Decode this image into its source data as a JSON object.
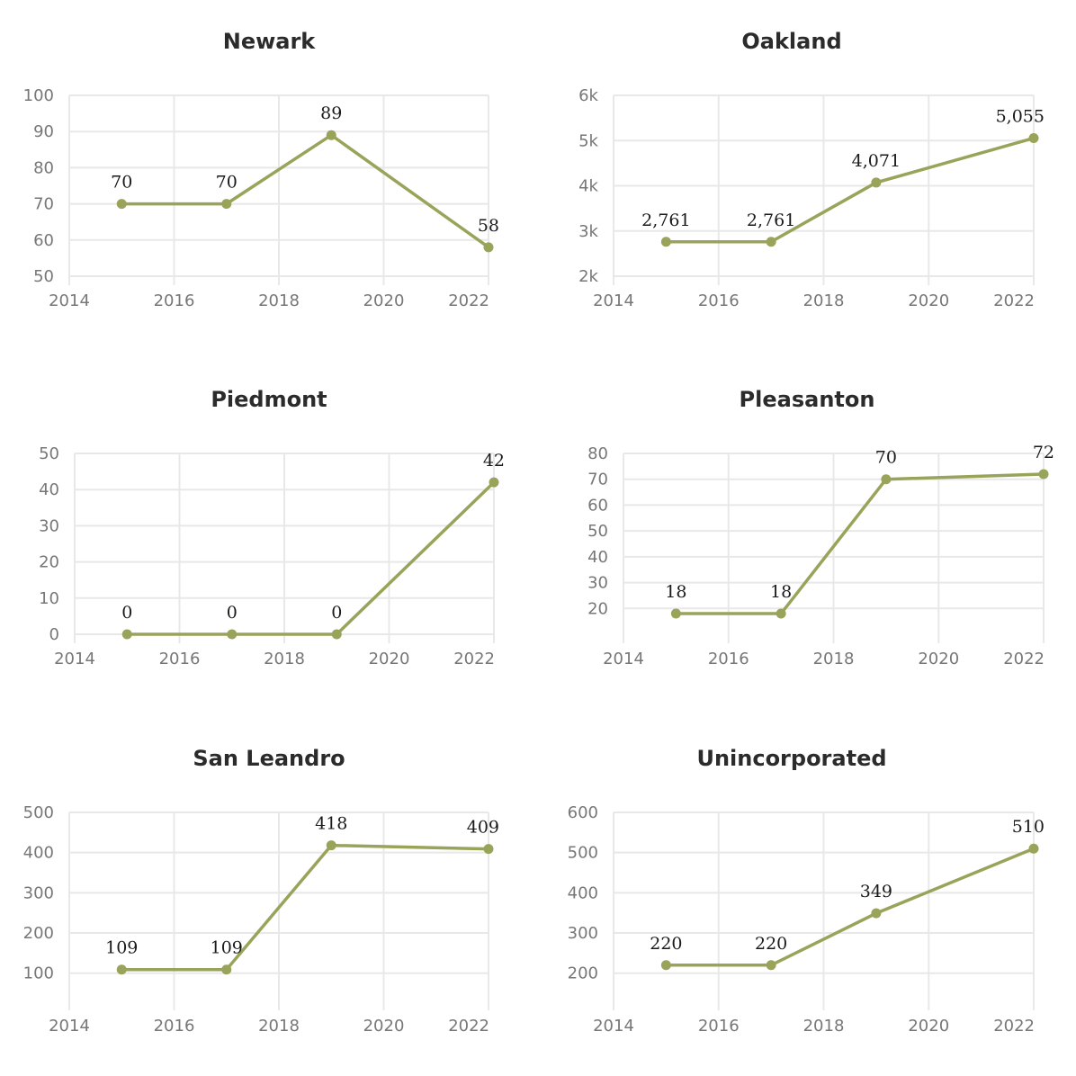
{
  "colors": {
    "series": "#9aa35a",
    "grid": "#e8e8e8",
    "tick": "#777777",
    "title": "#2b2b2b"
  },
  "chart_data": [
    {
      "type": "line",
      "title": "Newark",
      "x": [
        2015,
        2017,
        2019,
        2022
      ],
      "values": [
        70,
        70,
        89,
        58
      ],
      "data_labels": [
        "70",
        "70",
        "89",
        "58"
      ],
      "xlim": [
        2014,
        2022
      ],
      "xticks": [
        2014,
        2016,
        2018,
        2020,
        2022
      ],
      "xtick_labels": [
        "2014",
        "2016",
        "2018",
        "2020",
        "2022"
      ],
      "ylim": [
        50,
        100
      ],
      "yticks": [
        50,
        60,
        70,
        80,
        90,
        100
      ],
      "ytick_labels": [
        "50",
        "60",
        "70",
        "80",
        "90",
        "100"
      ],
      "grid": true
    },
    {
      "type": "line",
      "title": "Oakland",
      "x": [
        2015,
        2017,
        2019,
        2022
      ],
      "values": [
        2761,
        2761,
        4071,
        5055
      ],
      "data_labels": [
        "2,761",
        "2,761",
        "4,071",
        "5,055"
      ],
      "xlim": [
        2014,
        2022
      ],
      "xticks": [
        2014,
        2016,
        2018,
        2020,
        2022
      ],
      "xtick_labels": [
        "2014",
        "2016",
        "2018",
        "2020",
        "2022"
      ],
      "ylim": [
        2000,
        6000
      ],
      "yticks": [
        2000,
        3000,
        4000,
        5000,
        6000
      ],
      "ytick_labels": [
        "2k",
        "3k",
        "4k",
        "5k",
        "6k"
      ],
      "grid": true
    },
    {
      "type": "line",
      "title": "Piedmont",
      "x": [
        2015,
        2017,
        2019,
        2022
      ],
      "values": [
        0,
        0,
        0,
        42
      ],
      "data_labels": [
        "0",
        "0",
        "0",
        "42"
      ],
      "xlim": [
        2014,
        2022
      ],
      "xticks": [
        2014,
        2016,
        2018,
        2020,
        2022
      ],
      "xtick_labels": [
        "2014",
        "2016",
        "2018",
        "2020",
        "2022"
      ],
      "ylim": [
        0,
        50
      ],
      "yticks": [
        0,
        10,
        20,
        30,
        40,
        50
      ],
      "ytick_labels": [
        "0",
        "10",
        "20",
        "30",
        "40",
        "50"
      ],
      "grid": true
    },
    {
      "type": "line",
      "title": "Pleasanton",
      "x": [
        2015,
        2017,
        2019,
        2022
      ],
      "values": [
        18,
        18,
        70,
        72
      ],
      "data_labels": [
        "18",
        "18",
        "70",
        "72"
      ],
      "xlim": [
        2014,
        2022
      ],
      "xticks": [
        2014,
        2016,
        2018,
        2020,
        2022
      ],
      "xtick_labels": [
        "2014",
        "2016",
        "2018",
        "2020",
        "2022"
      ],
      "ylim": [
        10,
        80
      ],
      "yticks": [
        20,
        30,
        40,
        50,
        60,
        70,
        80
      ],
      "ytick_labels": [
        "20",
        "30",
        "40",
        "50",
        "60",
        "70",
        "80"
      ],
      "grid": true
    },
    {
      "type": "line",
      "title": "San Leandro",
      "x": [
        2015,
        2017,
        2019,
        2022
      ],
      "values": [
        109,
        109,
        418,
        409
      ],
      "data_labels": [
        "109",
        "109",
        "418",
        "409"
      ],
      "xlim": [
        2014,
        2022
      ],
      "xticks": [
        2014,
        2016,
        2018,
        2020,
        2022
      ],
      "xtick_labels": [
        "2014",
        "2016",
        "2018",
        "2020",
        "2022"
      ],
      "ylim": [
        30,
        500
      ],
      "yticks": [
        100,
        200,
        300,
        400,
        500
      ],
      "ytick_labels": [
        "100",
        "200",
        "300",
        "400",
        "500"
      ],
      "grid": true
    },
    {
      "type": "line",
      "title": "Unincorporated",
      "x": [
        2015,
        2017,
        2019,
        2022
      ],
      "values": [
        220,
        220,
        349,
        510
      ],
      "data_labels": [
        "220",
        "220",
        "349",
        "510"
      ],
      "xlim": [
        2014,
        2022
      ],
      "xticks": [
        2014,
        2016,
        2018,
        2020,
        2022
      ],
      "xtick_labels": [
        "2014",
        "2016",
        "2018",
        "2020",
        "2022"
      ],
      "ylim": [
        130,
        600
      ],
      "yticks": [
        200,
        300,
        400,
        500,
        600
      ],
      "ytick_labels": [
        "200",
        "300",
        "400",
        "500",
        "600"
      ],
      "grid": true
    }
  ]
}
